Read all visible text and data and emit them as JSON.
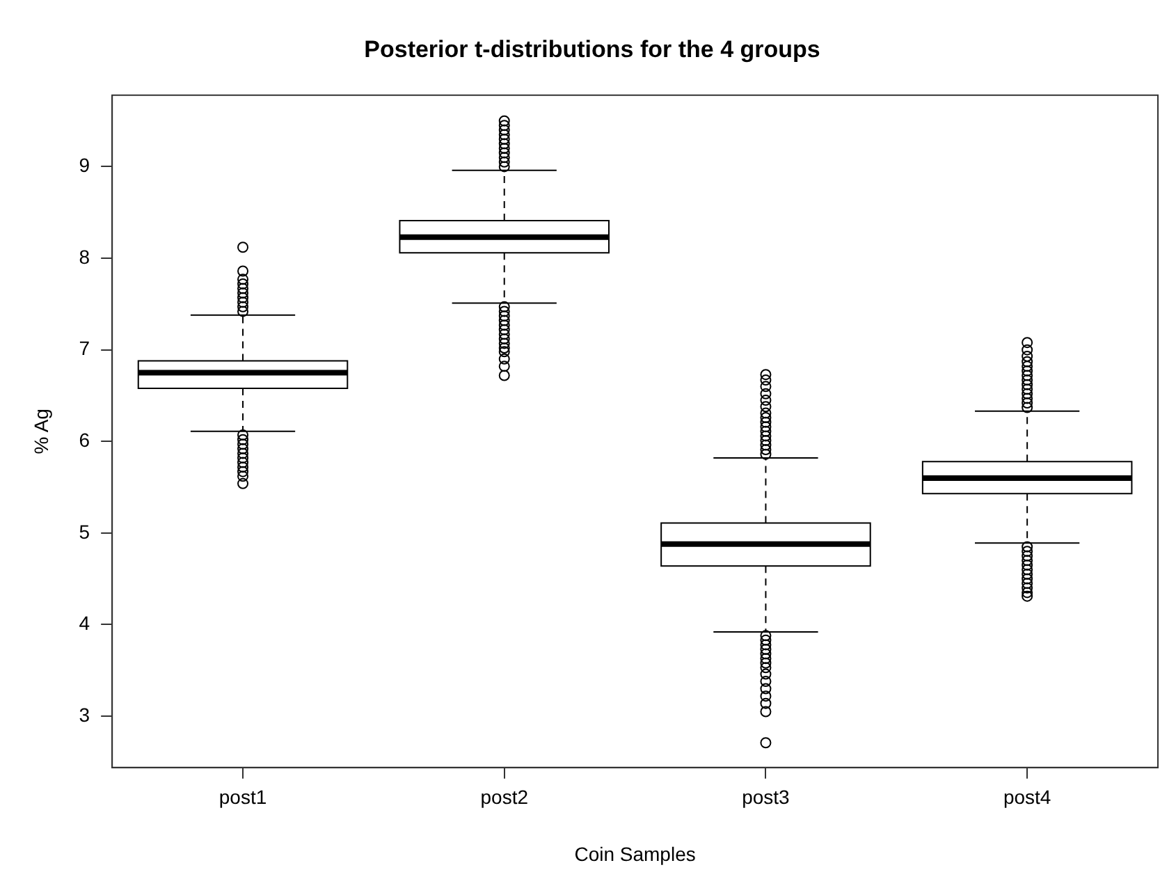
{
  "chart_data": {
    "type": "box",
    "title": "Posterior t-distributions for the 4 groups",
    "xlabel": "Coin Samples",
    "ylabel": "% Ag",
    "categories": [
      "post1",
      "post2",
      "post3",
      "post4"
    ],
    "boxes": [
      {
        "low": 6.11,
        "q1": 6.58,
        "median": 6.75,
        "q3": 6.88,
        "high": 7.38,
        "outliers": [
          7.42,
          7.47,
          7.52,
          7.57,
          7.62,
          7.67,
          7.72,
          7.77,
          7.86,
          8.12,
          6.07,
          6.02,
          5.97,
          5.92,
          5.87,
          5.82,
          5.77,
          5.72,
          5.67,
          5.62,
          5.54
        ]
      },
      {
        "low": 7.51,
        "q1": 8.06,
        "median": 8.23,
        "q3": 8.41,
        "high": 8.96,
        "outliers": [
          9.0,
          9.05,
          9.1,
          9.15,
          9.2,
          9.25,
          9.3,
          9.35,
          9.4,
          9.45,
          9.5,
          7.47,
          7.42,
          7.37,
          7.32,
          7.27,
          7.22,
          7.17,
          7.12,
          7.07,
          7.02,
          6.98,
          6.9,
          6.82,
          6.72
        ]
      },
      {
        "low": 3.92,
        "q1": 4.64,
        "median": 4.88,
        "q3": 5.11,
        "high": 5.82,
        "outliers": [
          5.86,
          5.91,
          5.96,
          6.01,
          6.06,
          6.11,
          6.16,
          6.21,
          6.26,
          6.31,
          6.38,
          6.45,
          6.52,
          6.6,
          6.67,
          6.73,
          3.88,
          3.83,
          3.78,
          3.73,
          3.68,
          3.63,
          3.58,
          3.53,
          3.46,
          3.38,
          3.3,
          3.22,
          3.14,
          3.05,
          2.71
        ]
      },
      {
        "low": 4.89,
        "q1": 5.43,
        "median": 5.6,
        "q3": 5.78,
        "high": 6.33,
        "outliers": [
          6.37,
          6.42,
          6.47,
          6.52,
          6.57,
          6.62,
          6.67,
          6.72,
          6.77,
          6.82,
          6.87,
          6.93,
          7.0,
          7.08,
          4.85,
          4.8,
          4.75,
          4.7,
          4.65,
          4.6,
          4.55,
          4.5,
          4.45,
          4.4,
          4.35,
          4.31
        ]
      }
    ],
    "ylim": [
      2.44,
      9.78
    ],
    "yticks": [
      3,
      4,
      5,
      6,
      7,
      8,
      9
    ],
    "grid": false,
    "legend": false
  }
}
